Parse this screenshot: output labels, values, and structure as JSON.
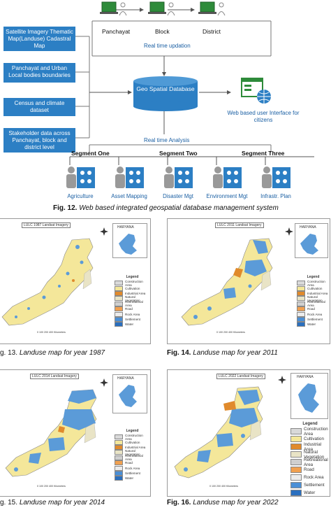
{
  "fig12": {
    "sources": [
      "Satellite Imagery Thematic Map(Landuse) Cadastral Map",
      "Panchayat and Urban Local bodies boundaries",
      "Census and climate dataset",
      "Stakeholder data across Panchayat, block and district level"
    ],
    "levels": [
      "Panchayat",
      "Block",
      "District"
    ],
    "realtime_updation": "Real time updation",
    "database": "Geo Spatial Database",
    "web_ui": "Web based user Interface for citizens",
    "realtime_analysis": "Real time Analysis",
    "segments": [
      "Segment One",
      "Segment Two",
      "Segment Three"
    ],
    "activities": [
      "Agriculture",
      "Asset Mapping",
      "Disaster Mgt",
      "Environment Mgt",
      "Infrastr. Plan"
    ],
    "caption_label": "Fig. 12.",
    "caption_text": "Web based integrated geospatial database management system"
  },
  "maps": [
    {
      "title": "LULC 1987 Landsat Imagery",
      "inset": "HARYANA",
      "caption_label": "g. 13.",
      "caption_text": "Landuse map for year 1987"
    },
    {
      "title": "LULC 2011 Landsat Imagery",
      "inset": "HARYANA",
      "caption_label": "Fig. 14.",
      "caption_text": "Landuse map for year 2011"
    },
    {
      "title": "LULC 2014 Landsat Imagery",
      "inset": "HARYANA",
      "caption_label": "g. 15.",
      "caption_text": "Landuse map for year 2014"
    },
    {
      "title": "LULC 2022 Landsat Imagery",
      "inset": "HARYANA",
      "caption_label": "Fig. 16.",
      "caption_text": "Landuse map for year 2022"
    }
  ],
  "legend": {
    "title": "Legend",
    "items": [
      {
        "label": "Construction Area",
        "color": "#d9d9d9"
      },
      {
        "label": "Cultivation",
        "color": "#f4e79a"
      },
      {
        "label": "Industrial Area",
        "color": "#e08a2c"
      },
      {
        "label": "Natural Vegetation",
        "color": "#e9e4c6"
      },
      {
        "label": "Recreational Area",
        "color": "#cfcfcf"
      },
      {
        "label": "Road",
        "color": "#f0a050"
      },
      {
        "label": "Rock Area",
        "color": "#ececec"
      },
      {
        "label": "Settlement",
        "color": "#4a8fd6"
      },
      {
        "label": "Water",
        "color": "#2a6fbf"
      }
    ]
  },
  "scale_text": "0   100   200        400 Kilometers",
  "colors": {
    "box_blue": "#2c7fc4",
    "map_yellow": "#f4e79a",
    "map_blue": "#5b9bd8"
  }
}
